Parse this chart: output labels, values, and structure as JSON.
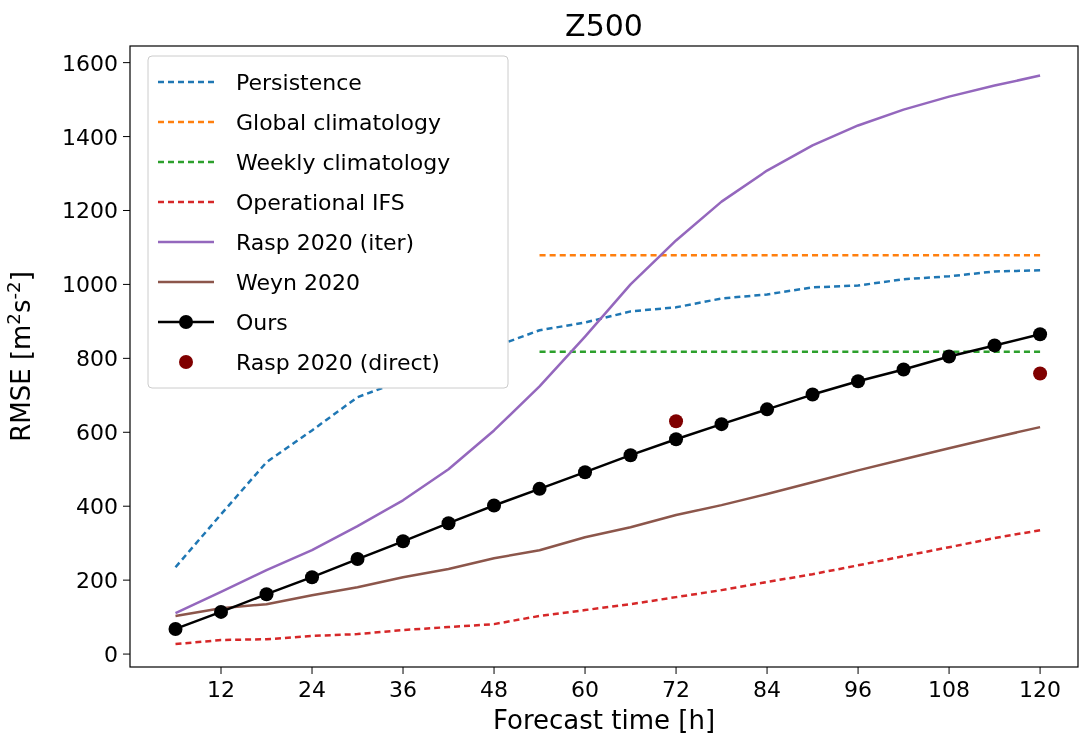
{
  "chart_data": {
    "type": "line",
    "title": "Z500",
    "xlabel": "Forecast time [h]",
    "ylabel": "RMSE [m$^{2}$s$^{-2}$]",
    "xlim": [
      0,
      125
    ],
    "xticks": [
      12,
      24,
      36,
      48,
      60,
      72,
      84,
      96,
      108,
      120
    ],
    "ylim": [
      -35,
      1645
    ],
    "yticks": [
      0,
      200,
      400,
      600,
      800,
      1000,
      1200,
      1400,
      1600
    ],
    "grid": false,
    "legend": "top left",
    "x": [
      6,
      12,
      18,
      24,
      30,
      36,
      42,
      48,
      54,
      60,
      66,
      72,
      78,
      84,
      90,
      96,
      102,
      108,
      114,
      120
    ],
    "series": [
      {
        "name": "Persistence",
        "color": "#1f77b4",
        "line_style": "dashed",
        "marker": "none",
        "values": [
          235,
          378,
          519,
          605,
          695,
          null,
          null,
          null,
          876,
          897,
          927,
          938,
          962,
          973,
          992,
          997,
          1014,
          1022,
          1035,
          1038
        ]
      },
      {
        "name": "Global climatology",
        "color": "#ff7f0e",
        "line_style": "dashed",
        "marker": "none",
        "x": [
          54,
          120
        ],
        "values": [
          1079,
          1079
        ]
      },
      {
        "name": "Weekly climatology",
        "color": "#2ca02c",
        "line_style": "dashed",
        "marker": "none",
        "x": [
          54,
          120
        ],
        "values": [
          818,
          818
        ]
      },
      {
        "name": "Operational IFS",
        "color": "#d62728",
        "line_style": "dashed",
        "marker": "none",
        "values": [
          27,
          38,
          40,
          49,
          54,
          65,
          73,
          81,
          103,
          119,
          135,
          154,
          173,
          195,
          216,
          240,
          265,
          289,
          314,
          335
        ]
      },
      {
        "name": "Rasp 2020 (iter)",
        "color": "#9467bd",
        "line_style": "solid",
        "marker": "none",
        "values": [
          111,
          168,
          227,
          281,
          346,
          416,
          500,
          605,
          724,
          859,
          1000,
          1119,
          1224,
          1308,
          1376,
          1430,
          1473,
          1508,
          1538,
          1565
        ]
      },
      {
        "name": "Weyn 2020",
        "color": "#8c564b",
        "line_style": "solid",
        "marker": "none",
        "values": [
          103,
          124,
          135,
          159,
          181,
          208,
          230,
          259,
          281,
          316,
          343,
          376,
          403,
          433,
          465,
          497,
          527,
          557,
          586,
          614
        ]
      },
      {
        "name": "Ours",
        "color": "#000000",
        "line_style": "solid",
        "marker": "circle",
        "values": [
          68,
          114,
          162,
          208,
          257,
          305,
          354,
          402,
          447,
          492,
          538,
          581,
          622,
          662,
          702,
          738,
          770,
          805,
          835,
          865
        ]
      },
      {
        "name": "Rasp 2020 (direct)",
        "type": "scatter",
        "color": "#800000",
        "marker": "circle",
        "x": [
          72,
          120
        ],
        "values": [
          630,
          759
        ]
      }
    ]
  }
}
